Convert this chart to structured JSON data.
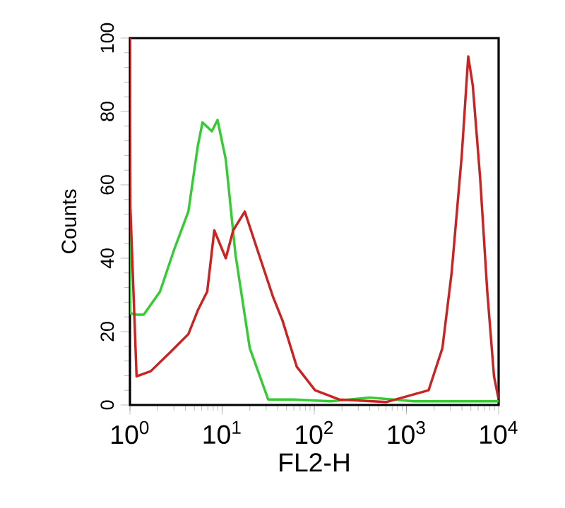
{
  "chart_data": {
    "type": "line",
    "xlabel": "FL2-H",
    "ylabel": "Counts",
    "log": "x",
    "xlim": [
      1,
      10000
    ],
    "ylim": [
      0,
      100
    ],
    "xticks": [
      {
        "value": 1,
        "label": "10$^{0}$"
      },
      {
        "value": 10,
        "label": "10$^{1}$"
      },
      {
        "value": 100,
        "label": "10$^{2}$"
      },
      {
        "value": 1000,
        "label": "10$^{3}$"
      },
      {
        "value": 10000,
        "label": "10$^{4}$"
      }
    ],
    "yticks": [
      0,
      20,
      40,
      60,
      80,
      100
    ],
    "grid": false,
    "marker": "none",
    "line_style": "solid",
    "series": [
      {
        "color": "#33cc33",
        "x": [
          1,
          1.01,
          1.18,
          1.41,
          2.12,
          3.02,
          4.3,
          5.45,
          6.12,
          7.74,
          8.91,
          10.96,
          13.96,
          19.95,
          31.6,
          60,
          150,
          400,
          1200,
          4000,
          10000
        ],
        "values": [
          62,
          25,
          24.6,
          24.6,
          30.9,
          42.4,
          52.7,
          70.6,
          77,
          74.6,
          77.7,
          66.9,
          41,
          15.5,
          1.5,
          1.5,
          1,
          2,
          1,
          1,
          1
        ]
      },
      {
        "color": "#cc2222",
        "x": [
          1,
          1.01,
          1.18,
          1.68,
          2.69,
          4.3,
          5.45,
          6.89,
          8.22,
          10.96,
          13.18,
          17.62,
          25.1,
          35.5,
          45.2,
          64.6,
          102,
          186,
          603,
          1738,
          2455,
          3090,
          3981,
          4677,
          5248,
          6310,
          7534,
          8913,
          10000
        ],
        "values": [
          100,
          54,
          7.8,
          9.2,
          14.2,
          19.3,
          25.8,
          30.9,
          47.6,
          40,
          47.6,
          52.7,
          41,
          29.6,
          23,
          10.4,
          4,
          1.5,
          0.8,
          4,
          15.5,
          36,
          68,
          95,
          87,
          61.7,
          30.9,
          7.8,
          1.5
        ]
      }
    ]
  }
}
